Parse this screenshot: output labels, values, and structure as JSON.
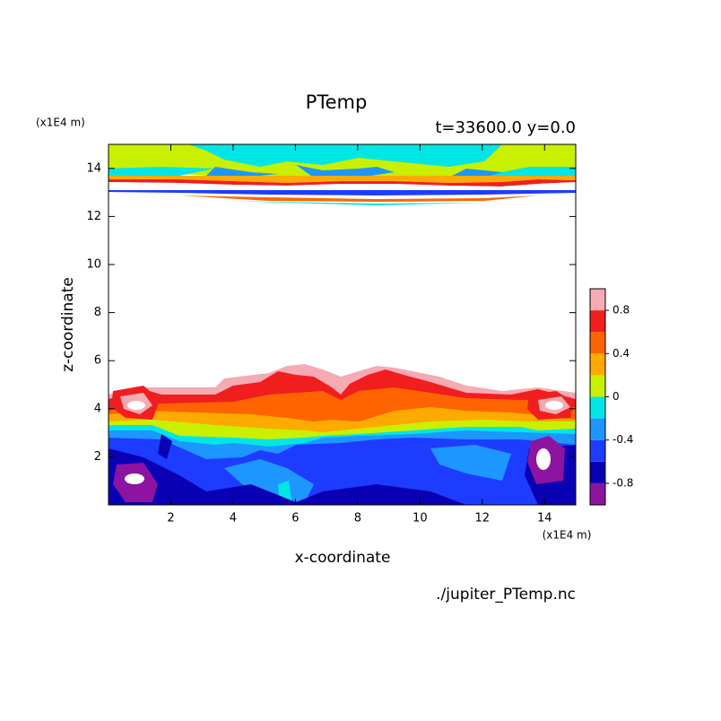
{
  "chart_data": {
    "type": "contour",
    "title": "PTemp",
    "subtitle": "t=33600.0 y=0.0",
    "x_label": "x-coordinate",
    "y_label": "z-coordinate",
    "x_unit": "(x1E4 m)",
    "y_unit": "(x1E4 m)",
    "footer": "./jupiter_PTemp.nc",
    "xlim": [
      0,
      15
    ],
    "ylim": [
      0,
      15
    ],
    "xticks": [
      2,
      4,
      6,
      8,
      10,
      12,
      14
    ],
    "yticks": [
      2,
      4,
      6,
      8,
      10,
      12,
      14
    ],
    "levels": [
      -1,
      -0.8,
      -0.6,
      -0.4,
      -0.2,
      0,
      0.2,
      0.4,
      0.6,
      0.8,
      1
    ],
    "colors": [
      "#8c14a0",
      "#0a00b4",
      "#1e3cff",
      "#1e96ff",
      "#00e6e6",
      "#c8f000",
      "#ffaa00",
      "#ff6400",
      "#f01e1e",
      "#f5aab4"
    ],
    "colorbar_ticks": [
      0.8,
      0.4,
      0,
      -0.4,
      -0.8
    ]
  }
}
